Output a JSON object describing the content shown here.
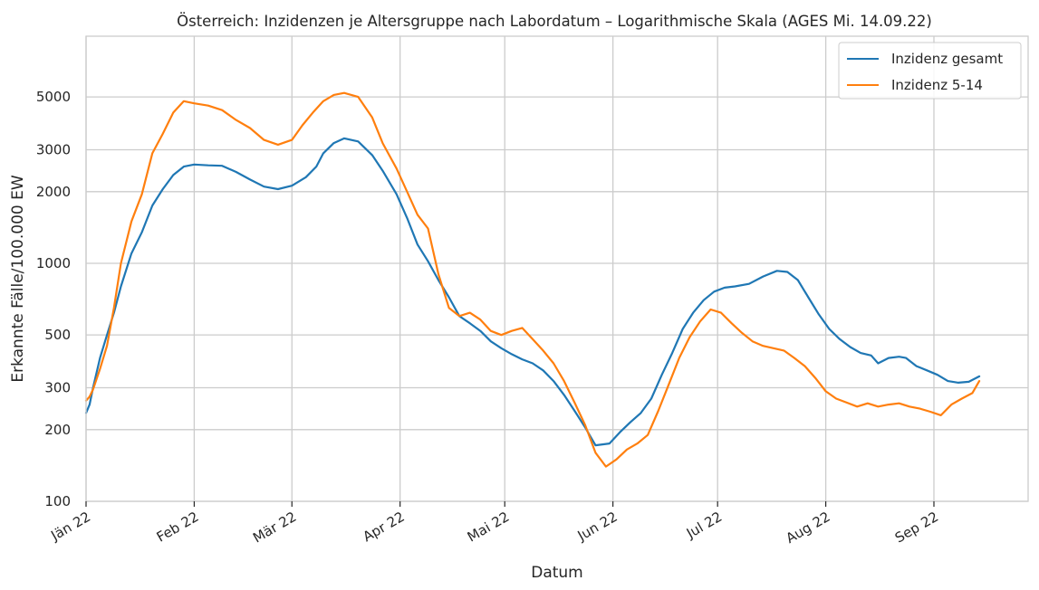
{
  "chart_data": {
    "type": "line",
    "title": "Österreich: Inzidenzen je Altersgruppe nach Labordatum – Logarithmische Skala (AGES Mi. 14.09.22)",
    "xlabel": "Datum",
    "ylabel": "Erkannte Fälle/100.000 EW",
    "y_scale": "log",
    "ylim": [
      100,
      9000
    ],
    "xlim": [
      "2022-01-01",
      "2022-09-28"
    ],
    "grid": true,
    "legend_position": "top-right",
    "x_ticks": [
      {
        "date": "2022-01-01",
        "label": "Jän 22"
      },
      {
        "date": "2022-02-01",
        "label": "Feb 22"
      },
      {
        "date": "2022-03-01",
        "label": "Mär 22"
      },
      {
        "date": "2022-04-01",
        "label": "Apr 22"
      },
      {
        "date": "2022-05-01",
        "label": "Mai 22"
      },
      {
        "date": "2022-06-01",
        "label": "Jun 22"
      },
      {
        "date": "2022-07-01",
        "label": "Jul 22"
      },
      {
        "date": "2022-08-01",
        "label": "Aug 22"
      },
      {
        "date": "2022-09-01",
        "label": "Sep 22"
      }
    ],
    "y_ticks": [
      {
        "value": 100,
        "label": "100"
      },
      {
        "value": 200,
        "label": "200"
      },
      {
        "value": 300,
        "label": "300"
      },
      {
        "value": 500,
        "label": "500"
      },
      {
        "value": 1000,
        "label": "1000"
      },
      {
        "value": 2000,
        "label": "2000"
      },
      {
        "value": 3000,
        "label": "3000"
      },
      {
        "value": 5000,
        "label": "5000"
      }
    ],
    "series": [
      {
        "name": "Inzidenz gesamt",
        "color": "#1f77b4",
        "points": [
          [
            "2022-01-01",
            235
          ],
          [
            "2022-01-02",
            255
          ],
          [
            "2022-01-03",
            300
          ],
          [
            "2022-01-05",
            400
          ],
          [
            "2022-01-07",
            500
          ],
          [
            "2022-01-09",
            620
          ],
          [
            "2022-01-11",
            800
          ],
          [
            "2022-01-14",
            1100
          ],
          [
            "2022-01-17",
            1350
          ],
          [
            "2022-01-20",
            1750
          ],
          [
            "2022-01-23",
            2050
          ],
          [
            "2022-01-26",
            2350
          ],
          [
            "2022-01-29",
            2550
          ],
          [
            "2022-02-01",
            2600
          ],
          [
            "2022-02-05",
            2580
          ],
          [
            "2022-02-09",
            2570
          ],
          [
            "2022-02-13",
            2420
          ],
          [
            "2022-02-17",
            2250
          ],
          [
            "2022-02-21",
            2100
          ],
          [
            "2022-02-25",
            2050
          ],
          [
            "2022-03-01",
            2120
          ],
          [
            "2022-03-05",
            2300
          ],
          [
            "2022-03-08",
            2550
          ],
          [
            "2022-03-10",
            2900
          ],
          [
            "2022-03-13",
            3200
          ],
          [
            "2022-03-16",
            3350
          ],
          [
            "2022-03-20",
            3250
          ],
          [
            "2022-03-24",
            2850
          ],
          [
            "2022-03-27",
            2450
          ],
          [
            "2022-03-31",
            1950
          ],
          [
            "2022-04-03",
            1550
          ],
          [
            "2022-04-06",
            1200
          ],
          [
            "2022-04-09",
            1020
          ],
          [
            "2022-04-12",
            850
          ],
          [
            "2022-04-15",
            720
          ],
          [
            "2022-04-18",
            600
          ],
          [
            "2022-04-21",
            560
          ],
          [
            "2022-04-24",
            520
          ],
          [
            "2022-04-27",
            470
          ],
          [
            "2022-04-30",
            440
          ],
          [
            "2022-05-03",
            415
          ],
          [
            "2022-05-06",
            395
          ],
          [
            "2022-05-09",
            380
          ],
          [
            "2022-05-12",
            355
          ],
          [
            "2022-05-15",
            320
          ],
          [
            "2022-05-18",
            280
          ],
          [
            "2022-05-21",
            240
          ],
          [
            "2022-05-24",
            205
          ],
          [
            "2022-05-27",
            172
          ],
          [
            "2022-05-31",
            175
          ],
          [
            "2022-06-03",
            195
          ],
          [
            "2022-06-06",
            215
          ],
          [
            "2022-06-09",
            235
          ],
          [
            "2022-06-12",
            270
          ],
          [
            "2022-06-15",
            340
          ],
          [
            "2022-06-18",
            420
          ],
          [
            "2022-06-21",
            530
          ],
          [
            "2022-06-24",
            620
          ],
          [
            "2022-06-27",
            700
          ],
          [
            "2022-06-30",
            760
          ],
          [
            "2022-07-03",
            790
          ],
          [
            "2022-07-06",
            800
          ],
          [
            "2022-07-10",
            820
          ],
          [
            "2022-07-14",
            880
          ],
          [
            "2022-07-18",
            930
          ],
          [
            "2022-07-21",
            920
          ],
          [
            "2022-07-24",
            850
          ],
          [
            "2022-07-27",
            720
          ],
          [
            "2022-07-30",
            610
          ],
          [
            "2022-08-02",
            530
          ],
          [
            "2022-08-05",
            480
          ],
          [
            "2022-08-08",
            445
          ],
          [
            "2022-08-11",
            420
          ],
          [
            "2022-08-14",
            410
          ],
          [
            "2022-08-16",
            380
          ],
          [
            "2022-08-19",
            400
          ],
          [
            "2022-08-22",
            405
          ],
          [
            "2022-08-24",
            400
          ],
          [
            "2022-08-27",
            370
          ],
          [
            "2022-08-30",
            355
          ],
          [
            "2022-09-02",
            340
          ],
          [
            "2022-09-05",
            320
          ],
          [
            "2022-09-08",
            315
          ],
          [
            "2022-09-11",
            318
          ],
          [
            "2022-09-14",
            335
          ]
        ]
      },
      {
        "name": "Inzidenz 5-14",
        "color": "#ff7f0e",
        "points": [
          [
            "2022-01-01",
            265
          ],
          [
            "2022-01-02",
            275
          ],
          [
            "2022-01-03",
            295
          ],
          [
            "2022-01-05",
            360
          ],
          [
            "2022-01-07",
            450
          ],
          [
            "2022-01-09",
            650
          ],
          [
            "2022-01-11",
            1000
          ],
          [
            "2022-01-14",
            1500
          ],
          [
            "2022-01-17",
            1950
          ],
          [
            "2022-01-20",
            2900
          ],
          [
            "2022-01-23",
            3500
          ],
          [
            "2022-01-26",
            4300
          ],
          [
            "2022-01-29",
            4800
          ],
          [
            "2022-02-01",
            4700
          ],
          [
            "2022-02-05",
            4600
          ],
          [
            "2022-02-09",
            4400
          ],
          [
            "2022-02-13",
            4000
          ],
          [
            "2022-02-17",
            3700
          ],
          [
            "2022-02-21",
            3300
          ],
          [
            "2022-02-25",
            3150
          ],
          [
            "2022-03-01",
            3300
          ],
          [
            "2022-03-04",
            3800
          ],
          [
            "2022-03-07",
            4300
          ],
          [
            "2022-03-10",
            4800
          ],
          [
            "2022-03-13",
            5100
          ],
          [
            "2022-03-16",
            5200
          ],
          [
            "2022-03-20",
            5000
          ],
          [
            "2022-03-24",
            4100
          ],
          [
            "2022-03-27",
            3200
          ],
          [
            "2022-03-31",
            2500
          ],
          [
            "2022-04-03",
            2000
          ],
          [
            "2022-04-06",
            1600
          ],
          [
            "2022-04-09",
            1400
          ],
          [
            "2022-04-12",
            900
          ],
          [
            "2022-04-15",
            650
          ],
          [
            "2022-04-18",
            600
          ],
          [
            "2022-04-21",
            620
          ],
          [
            "2022-04-24",
            580
          ],
          [
            "2022-04-27",
            520
          ],
          [
            "2022-04-30",
            500
          ],
          [
            "2022-05-03",
            520
          ],
          [
            "2022-05-06",
            535
          ],
          [
            "2022-05-09",
            480
          ],
          [
            "2022-05-12",
            430
          ],
          [
            "2022-05-15",
            380
          ],
          [
            "2022-05-18",
            320
          ],
          [
            "2022-05-21",
            260
          ],
          [
            "2022-05-24",
            210
          ],
          [
            "2022-05-27",
            160
          ],
          [
            "2022-05-30",
            140
          ],
          [
            "2022-06-02",
            150
          ],
          [
            "2022-06-05",
            165
          ],
          [
            "2022-06-08",
            175
          ],
          [
            "2022-06-11",
            190
          ],
          [
            "2022-06-14",
            240
          ],
          [
            "2022-06-17",
            310
          ],
          [
            "2022-06-20",
            400
          ],
          [
            "2022-06-23",
            490
          ],
          [
            "2022-06-26",
            570
          ],
          [
            "2022-06-29",
            640
          ],
          [
            "2022-07-02",
            620
          ],
          [
            "2022-07-05",
            560
          ],
          [
            "2022-07-08",
            510
          ],
          [
            "2022-07-11",
            470
          ],
          [
            "2022-07-14",
            450
          ],
          [
            "2022-07-17",
            440
          ],
          [
            "2022-07-20",
            430
          ],
          [
            "2022-07-23",
            400
          ],
          [
            "2022-07-26",
            370
          ],
          [
            "2022-07-29",
            330
          ],
          [
            "2022-08-01",
            290
          ],
          [
            "2022-08-04",
            270
          ],
          [
            "2022-08-07",
            260
          ],
          [
            "2022-08-10",
            250
          ],
          [
            "2022-08-13",
            258
          ],
          [
            "2022-08-16",
            250
          ],
          [
            "2022-08-19",
            255
          ],
          [
            "2022-08-22",
            258
          ],
          [
            "2022-08-25",
            250
          ],
          [
            "2022-08-28",
            245
          ],
          [
            "2022-08-31",
            238
          ],
          [
            "2022-09-03",
            230
          ],
          [
            "2022-09-06",
            255
          ],
          [
            "2022-09-09",
            270
          ],
          [
            "2022-09-12",
            285
          ],
          [
            "2022-09-14",
            320
          ]
        ]
      }
    ]
  }
}
